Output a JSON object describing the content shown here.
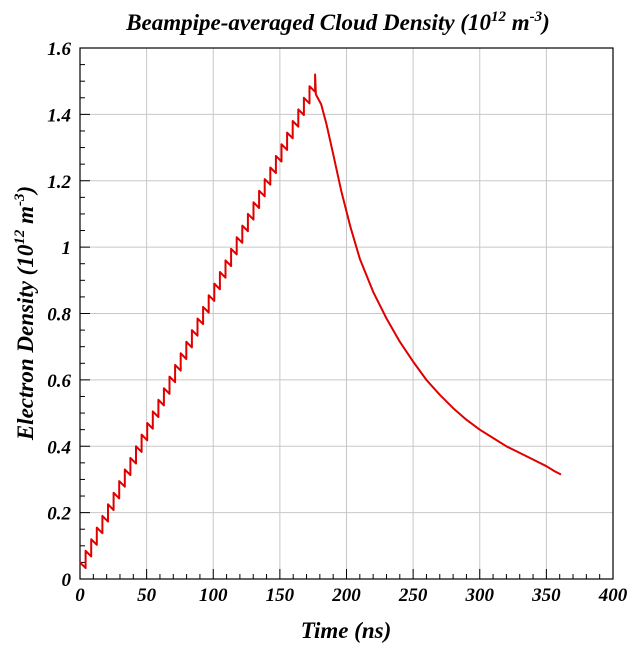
{
  "chart_data": {
    "type": "line",
    "title": {
      "main": "Beampipe-averaged Cloud Density (10",
      "exp1": "12",
      "mid": " m",
      "exp2": "-3",
      "end": ")"
    },
    "xlabel": "Time (ns)",
    "ylabel": {
      "main": "Electron Density (10",
      "exp1": "12",
      "mid": " m",
      "exp2": "-3",
      "end": ")"
    },
    "xlim": [
      0,
      400
    ],
    "ylim": [
      0,
      1.6
    ],
    "xticks": [
      0,
      50,
      100,
      150,
      200,
      250,
      300,
      350,
      400
    ],
    "xtick_labels": [
      "0",
      "50",
      "100",
      "150",
      "200",
      "250",
      "300",
      "350",
      "400"
    ],
    "yticks": [
      0,
      0.2,
      0.4,
      0.6,
      0.8,
      1.0,
      1.2,
      1.4,
      1.6
    ],
    "ytick_labels": [
      "0",
      "0.2",
      "0.4",
      "0.6",
      "0.8",
      "1",
      "1.2",
      "1.4",
      "1.6"
    ],
    "grid": true,
    "color": "#e00000",
    "series": [
      {
        "bunch_train": {
          "bunch_spacing_ns": 4.2,
          "n_bunches": 42,
          "bunch_jump": 0.052,
          "decay_between_bunches": 0.017,
          "start_value": 0.05
        },
        "decay_points": [
          [
            177,
            1.46
          ],
          [
            181,
            1.43
          ],
          [
            185,
            1.37
          ],
          [
            190,
            1.28
          ],
          [
            196,
            1.17
          ],
          [
            203,
            1.06
          ],
          [
            210,
            0.965
          ],
          [
            220,
            0.865
          ],
          [
            230,
            0.785
          ],
          [
            240,
            0.715
          ],
          [
            250,
            0.655
          ],
          [
            260,
            0.6
          ],
          [
            270,
            0.555
          ],
          [
            280,
            0.515
          ],
          [
            290,
            0.48
          ],
          [
            300,
            0.45
          ],
          [
            310,
            0.425
          ],
          [
            320,
            0.4
          ],
          [
            330,
            0.38
          ],
          [
            340,
            0.36
          ],
          [
            350,
            0.34
          ],
          [
            356,
            0.325
          ],
          [
            361,
            0.315
          ]
        ]
      }
    ]
  }
}
